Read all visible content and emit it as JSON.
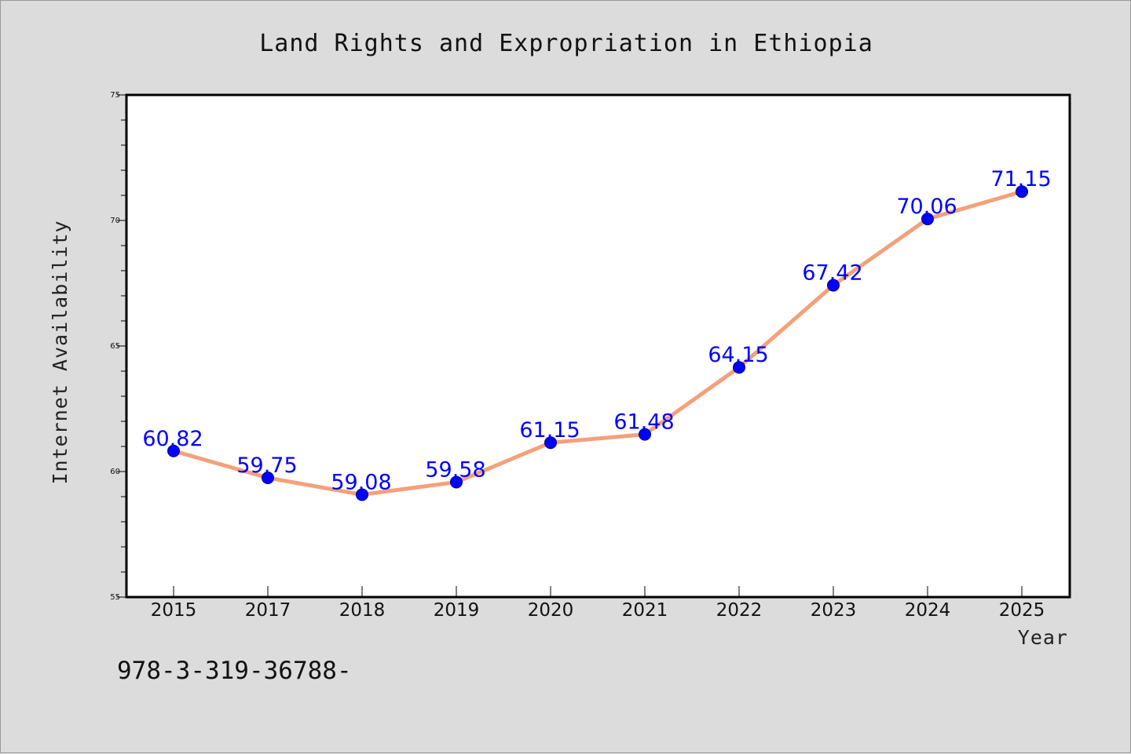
{
  "chart_data": {
    "type": "line",
    "title": "Land Rights and Expropriation in Ethiopia",
    "xlabel": "Year",
    "ylabel": "Internet Availability",
    "categories": [
      "2015",
      "2017",
      "2018",
      "2019",
      "2020",
      "2021",
      "2022",
      "2023",
      "2024",
      "2025"
    ],
    "series": [
      {
        "values": [
          60.82,
          59.75,
          59.08,
          59.58,
          61.15,
          61.48,
          64.15,
          67.42,
          70.06,
          71.15
        ],
        "line_color": "#f4a07a",
        "marker_color": "#0000ff"
      }
    ],
    "data_labels": [
      "60.82",
      "59.75",
      "59.08",
      "59.58",
      "61.15",
      "61.48",
      "64.15",
      "67.42",
      "70.06",
      "71.15"
    ],
    "ylim": [
      55,
      75
    ],
    "yticks": [
      "55",
      "60",
      "65",
      "70",
      "75"
    ],
    "grid": false,
    "legend": "none"
  },
  "annotation": "978-3-319-36788-",
  "colors": {
    "background": "#dcdcdc",
    "plot_background": "#ffffff",
    "label_color": "#0000ff"
  }
}
